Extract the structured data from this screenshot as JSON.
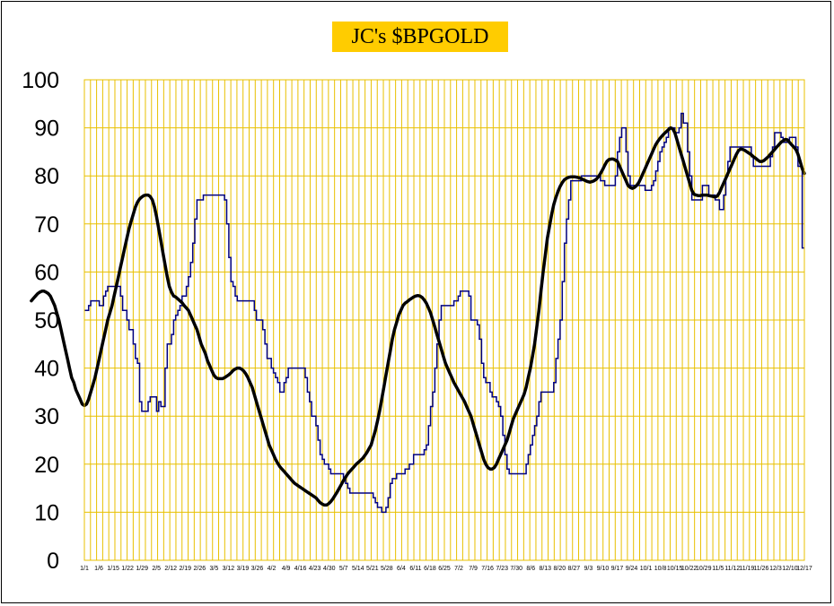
{
  "chart_data": {
    "type": "line",
    "title": "JC's $BPGOLD",
    "xlabel": "",
    "ylabel": "",
    "ylim": [
      0,
      100
    ],
    "y_ticks": [
      0,
      10,
      20,
      30,
      40,
      50,
      60,
      70,
      80,
      90,
      100
    ],
    "x_tick_labels": [
      "1/1",
      "1/6",
      "1/15",
      "1/22",
      "1/29",
      "2/5",
      "2/12",
      "2/19",
      "2/26",
      "3/5",
      "3/12",
      "3/19",
      "3/26",
      "4/2",
      "4/9",
      "4/16",
      "4/23",
      "4/30",
      "5/7",
      "5/14",
      "5/21",
      "5/28",
      "6/4",
      "6/11",
      "6/18",
      "6/25",
      "7/2",
      "7/9",
      "7/16",
      "7/23",
      "7/30",
      "8/6",
      "8/13",
      "8/20",
      "8/27",
      "9/3",
      "9/10",
      "9/17",
      "9/24",
      "10/1",
      "10/8",
      "10/15",
      "10/22",
      "10/29",
      "11/5",
      "11/12",
      "11/19",
      "11/26",
      "12/3",
      "12/10",
      "12/17"
    ],
    "grid": true,
    "legend": "none",
    "colors": {
      "grid": "#e8c000",
      "raw": "#000080",
      "smooth": "#000000",
      "title_bg": "#ffcc00"
    },
    "series": [
      {
        "values": [
          52,
          52,
          53,
          54,
          54,
          54,
          54,
          53,
          53,
          55,
          56,
          57,
          57,
          57,
          57,
          57,
          57,
          55,
          52,
          52,
          50,
          48,
          48,
          45,
          42,
          41,
          33,
          31,
          31,
          31,
          33,
          34,
          34,
          34,
          31,
          33,
          32,
          32,
          40,
          45,
          45,
          47,
          50,
          51,
          52,
          53,
          55,
          55,
          57,
          59,
          62,
          66,
          71,
          75,
          75,
          75,
          76,
          76,
          76,
          76,
          76,
          76,
          76,
          76,
          76,
          76,
          75,
          70,
          63,
          58,
          57,
          55,
          54,
          54,
          54,
          54,
          54,
          54,
          54,
          54,
          52,
          50,
          50,
          50,
          48,
          45,
          42,
          42,
          40,
          39,
          38,
          37,
          35,
          35,
          37,
          38,
          40,
          40,
          40,
          40,
          40,
          40,
          40,
          40,
          38,
          35,
          33,
          30,
          30,
          28,
          25,
          22,
          21,
          20,
          20,
          19,
          18,
          18,
          18,
          18,
          18,
          18,
          17,
          16,
          15,
          14,
          14,
          14,
          14,
          14,
          14,
          14,
          14,
          14,
          14,
          14,
          13,
          12,
          11,
          11,
          10,
          10,
          11,
          13,
          16,
          17,
          17,
          18,
          18,
          18,
          18,
          19,
          19,
          20,
          20,
          22,
          22,
          22,
          22,
          22,
          23,
          24,
          28,
          32,
          35,
          40,
          45,
          50,
          53,
          53,
          53,
          53,
          53,
          53,
          54,
          54,
          55,
          56,
          56,
          56,
          56,
          55,
          50,
          50,
          50,
          49,
          46,
          41,
          38,
          37,
          37,
          35,
          34,
          34,
          33,
          32,
          30,
          26,
          22,
          19,
          18,
          18,
          18,
          18,
          18,
          18,
          18,
          18,
          20,
          22,
          24,
          26,
          28,
          30,
          33,
          35,
          35,
          35,
          35,
          35,
          35,
          37,
          42,
          46,
          50,
          58,
          66,
          71,
          75,
          79,
          79,
          79,
          79,
          79,
          80,
          80,
          80,
          80,
          80,
          80,
          80,
          80,
          80,
          79,
          79,
          78,
          78,
          78,
          78,
          78,
          80,
          85,
          88,
          90,
          90,
          85,
          80,
          78,
          78,
          78,
          78,
          78,
          78,
          78,
          77,
          77,
          77,
          78,
          79,
          81,
          83,
          85,
          86,
          87,
          88,
          90,
          90,
          90,
          89,
          89,
          90,
          93,
          91,
          91,
          85,
          80,
          75,
          75,
          75,
          75,
          75,
          78,
          78,
          78,
          76,
          76,
          76,
          75,
          75,
          73,
          73,
          76,
          80,
          83,
          86,
          86,
          86,
          86,
          86,
          86,
          86,
          86,
          86,
          86,
          84,
          82,
          82,
          82,
          82,
          82,
          82,
          82,
          82,
          84,
          86,
          89,
          89,
          89,
          88,
          87,
          87,
          87,
          88,
          88,
          88,
          86,
          82,
          82,
          65,
          65
        ]
      },
      {
        "values": [
          54,
          54.5,
          55,
          55.5,
          55.8,
          56,
          56,
          55.8,
          55.5,
          55,
          54,
          53,
          51.5,
          50,
          48,
          46,
          44,
          42,
          40,
          38,
          37,
          35.5,
          34.5,
          33.5,
          32.5,
          32.2,
          32.5,
          33.5,
          35,
          36.5,
          38,
          40,
          42,
          44,
          46,
          48,
          50,
          51.5,
          53,
          55,
          57,
          59,
          61,
          63,
          65,
          67,
          69,
          70.5,
          72,
          73.5,
          74.5,
          75.2,
          75.6,
          75.9,
          76,
          76,
          75.7,
          75,
          73.5,
          71.5,
          69,
          66.5,
          64,
          61.5,
          59,
          57,
          55.8,
          55,
          54.8,
          54.4,
          54,
          53.6,
          53,
          52.5,
          52,
          51,
          50,
          49,
          48,
          46.5,
          45,
          44,
          43,
          41.5,
          40.5,
          39.5,
          38.5,
          38,
          37.8,
          37.8,
          37.8,
          38,
          38.3,
          38.6,
          39,
          39.5,
          39.8,
          40,
          40,
          39.8,
          39.4,
          38.8,
          38,
          37,
          36,
          34.5,
          33,
          31.5,
          30,
          28.5,
          27,
          25.5,
          24,
          23,
          22,
          21,
          20.2,
          19.5,
          19,
          18.5,
          18,
          17.5,
          17,
          16.5,
          16,
          15.7,
          15.4,
          15.1,
          14.8,
          14.5,
          14.2,
          13.9,
          13.6,
          13.3,
          13,
          12.5,
          12,
          11.7,
          11.5,
          11.5,
          11.8,
          12.2,
          12.8,
          13.5,
          14.2,
          15,
          15.8,
          16.6,
          17.3,
          18,
          18.5,
          19,
          19.5,
          20,
          20.4,
          20.8,
          21.2,
          21.8,
          22.4,
          23.2,
          24,
          25.5,
          27,
          29,
          31,
          33.5,
          36,
          38.5,
          41,
          43.5,
          46,
          48,
          49.5,
          51,
          52,
          53,
          53.5,
          53.8,
          54.2,
          54.5,
          54.8,
          55,
          55.1,
          55,
          54.7,
          54.2,
          53.5,
          52.5,
          51.5,
          50,
          48.5,
          47,
          45.5,
          44,
          42.5,
          41,
          40,
          39,
          38,
          37,
          36.2,
          35.4,
          34.6,
          33.8,
          33,
          32,
          31,
          30,
          28.5,
          27,
          25.5,
          24,
          22.5,
          21,
          20,
          19.3,
          19,
          19,
          19.3,
          20,
          21,
          22,
          23,
          24,
          25,
          26.5,
          28,
          29.5,
          30.5,
          31.5,
          32.5,
          33.5,
          34.5,
          36,
          38,
          40,
          42.5,
          45,
          48.5,
          52,
          56,
          60,
          63.5,
          67,
          69.5,
          72,
          74,
          75.5,
          76.8,
          77.8,
          78.6,
          79.2,
          79.5,
          79.7,
          79.8,
          79.8,
          79.8,
          79.7,
          79.6,
          79.4,
          79.2,
          79,
          78.8,
          78.7,
          78.8,
          79,
          79.3,
          79.8,
          80.5,
          81.3,
          82.2,
          83,
          83.4,
          83.5,
          83.5,
          83.3,
          83,
          82,
          81,
          80,
          79,
          78,
          77.6,
          77.4,
          77.6,
          78,
          78.6,
          79.5,
          80.5,
          81.5,
          82.5,
          83.5,
          84.5,
          85.5,
          86.5,
          87.2,
          87.8,
          88.3,
          88.8,
          89.2,
          89.6,
          90,
          89.8,
          89,
          87.5,
          86,
          84.5,
          83,
          81.5,
          80,
          78.5,
          77,
          76.2,
          76,
          75.9,
          75.9,
          76,
          76,
          76,
          75.9,
          75.8,
          75.7,
          75.6,
          75.8,
          76.5,
          77.5,
          78.5,
          79.5,
          80.5,
          81.5,
          82.5,
          83.5,
          84.5,
          85.3,
          85.6,
          85.5,
          85.3,
          85,
          84.7,
          84.4,
          84,
          83.7,
          83.3,
          83,
          83,
          83.2,
          83.6,
          84,
          84.5,
          85,
          85.5,
          86,
          86.5,
          87,
          87.3,
          87.6,
          87.5,
          87,
          86.5,
          86,
          85.5,
          84.5,
          83,
          81.5,
          80.5
        ]
      }
    ]
  }
}
